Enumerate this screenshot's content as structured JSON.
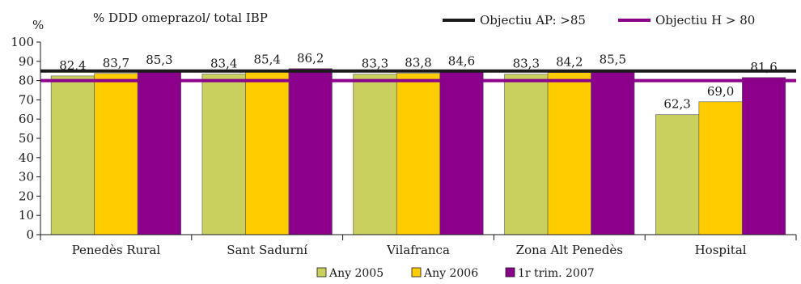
{
  "chart_data": {
    "type": "bar",
    "title": "% DDD omeprazol/ total IBP",
    "ylabel": "%",
    "ylim": [
      0,
      100
    ],
    "yticks": [
      0,
      10,
      20,
      30,
      40,
      50,
      60,
      70,
      80,
      90,
      100
    ],
    "categories": [
      "Penedès Rural",
      "Sant Sadurní",
      "Vilafranca",
      "Zona Alt Penedès",
      "Hospital"
    ],
    "series": [
      {
        "name": "Any 2005",
        "color": "#c9d05e",
        "values": [
          82.4,
          83.4,
          83.3,
          83.3,
          62.3
        ],
        "labels": [
          "82,4",
          "83,4",
          "83,3",
          "83,3",
          "62,3"
        ]
      },
      {
        "name": "Any 2006",
        "color": "#ffcc00",
        "values": [
          83.7,
          85.4,
          83.8,
          84.2,
          69.0
        ],
        "labels": [
          "83,7",
          "85,4",
          "83,8",
          "84,2",
          "69,0"
        ]
      },
      {
        "name": "1r trim. 2007",
        "color": "#8b008b",
        "values": [
          85.3,
          86.2,
          84.6,
          85.5,
          81.6
        ],
        "labels": [
          "85,3",
          "86,2",
          "84,6",
          "85,5",
          "81,6"
        ]
      }
    ],
    "reference_lines": [
      {
        "name": "Objectiu AP: >85",
        "value": 85,
        "color": "#1a1a1a"
      },
      {
        "name": "Objectiu H > 80",
        "value": 80,
        "color": "#8b008b"
      }
    ],
    "grid": false,
    "legend_position": "bottom"
  }
}
